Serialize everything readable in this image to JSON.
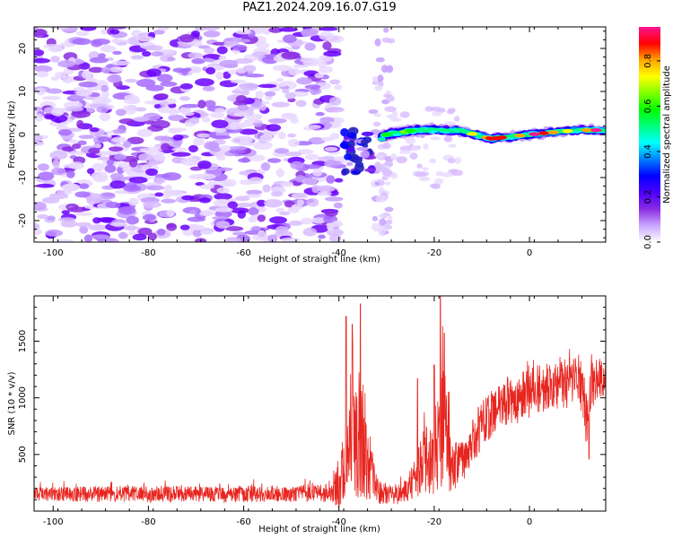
{
  "figure": {
    "title": "PAZ1.2024.209.16.07.G19"
  },
  "colorbar": {
    "label": "Normalized spectral amplitude",
    "ticks": [
      "0.0",
      "0.2",
      "0.4",
      "0.6",
      "0.8"
    ],
    "range": [
      0,
      0.95
    ],
    "colors": [
      "#ffffff",
      "#c9a6ff",
      "#8a2be2",
      "#4b00ff",
      "#0000ff",
      "#0080ff",
      "#00ffff",
      "#00ff80",
      "#00ff00",
      "#80ff00",
      "#ffff00",
      "#ffa500",
      "#ff0000",
      "#ff1493"
    ]
  },
  "chart_data": [
    {
      "type": "heatmap",
      "xlabel": "Height of straight line (km)",
      "ylabel": "Frequency (Hz)",
      "xlim": [
        -104,
        16
      ],
      "ylim": [
        -25,
        25
      ],
      "xticks": [
        "-100",
        "-80",
        "-60",
        "-40",
        "-20",
        "0"
      ],
      "yticks": [
        "20",
        "10",
        "0",
        "-10",
        "-20"
      ],
      "description_values": {
        "noise_region_km": [
          -104,
          -40
        ],
        "blank_region_km": [
          -40,
          -31
        ],
        "signal_trace_hz": [
          [
            -37,
            -5
          ],
          [
            -30,
            0
          ],
          [
            -24,
            1
          ],
          [
            -15,
            1
          ],
          [
            -8,
            -1
          ],
          [
            0,
            0
          ],
          [
            10,
            1
          ],
          [
            16,
            1
          ]
        ],
        "signal_peak_amplitude": 0.95
      }
    },
    {
      "type": "line",
      "xlabel": "Height of straight line (km)",
      "ylabel": "SNR (10 * v/v)",
      "xlim": [
        -104,
        16
      ],
      "ylim": [
        0,
        1900
      ],
      "xticks": [
        "-100",
        "-80",
        "-60",
        "-40",
        "-20",
        "0"
      ],
      "yticks": [
        "500",
        "1000",
        "1500"
      ],
      "color": "#e8251f",
      "envelope": {
        "x": [
          -104,
          -90,
          -80,
          -70,
          -60,
          -50,
          -42,
          -40,
          -38,
          -37,
          -36,
          -35,
          -34,
          -32,
          -30,
          -28,
          -26,
          -24,
          -22,
          -20,
          -19,
          -18,
          -17,
          -16,
          -15,
          -12,
          -10,
          -8,
          -5,
          -2,
          0,
          3,
          6,
          9,
          11,
          12,
          13,
          14,
          16
        ],
        "base": [
          150,
          150,
          150,
          150,
          150,
          150,
          160,
          250,
          500,
          700,
          600,
          600,
          400,
          200,
          150,
          130,
          180,
          280,
          450,
          550,
          650,
          700,
          550,
          380,
          400,
          600,
          780,
          850,
          950,
          1000,
          1050,
          1080,
          1100,
          1150,
          1100,
          800,
          1100,
          1200,
          1150
        ],
        "spread": [
          120,
          140,
          150,
          140,
          150,
          140,
          160,
          450,
          700,
          1050,
          1000,
          1100,
          600,
          300,
          180,
          160,
          200,
          350,
          600,
          800,
          1000,
          1300,
          800,
          500,
          400,
          400,
          450,
          400,
          450,
          450,
          450,
          450,
          450,
          450,
          450,
          500,
          450,
          400,
          350
        ]
      },
      "peaks": [
        [
          -38.5,
          1720
        ],
        [
          -35.5,
          1830
        ],
        [
          -18.7,
          1900
        ],
        [
          -17.9,
          1570
        ],
        [
          -37.2,
          1650
        ],
        [
          -23.5,
          1170
        ],
        [
          -20,
          1290
        ],
        [
          12.5,
          460
        ]
      ]
    }
  ]
}
